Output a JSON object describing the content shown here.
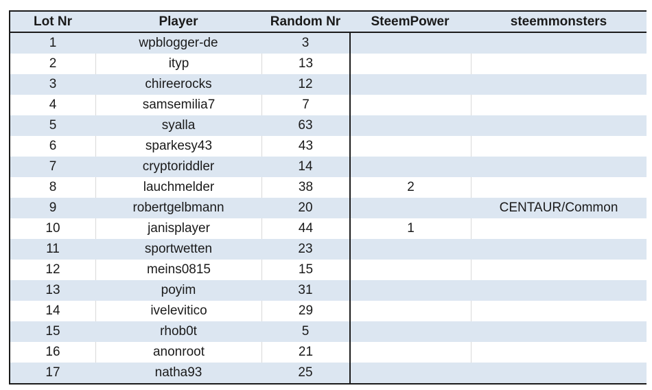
{
  "table": {
    "headers": [
      "Lot Nr",
      "Player",
      "Random Nr",
      "SteemPower",
      "steemmonsters"
    ],
    "rows": [
      [
        "1",
        "wpblogger-de",
        "3",
        "",
        ""
      ],
      [
        "2",
        "ityp",
        "13",
        "",
        ""
      ],
      [
        "3",
        "chireerocks",
        "12",
        "",
        ""
      ],
      [
        "4",
        "samsemilia7",
        "7",
        "",
        ""
      ],
      [
        "5",
        "syalla",
        "63",
        "",
        ""
      ],
      [
        "6",
        "sparkesy43",
        "43",
        "",
        ""
      ],
      [
        "7",
        "cryptoriddler",
        "14",
        "",
        ""
      ],
      [
        "8",
        "lauchmelder",
        "38",
        "2",
        ""
      ],
      [
        "9",
        "robertgelbmann",
        "20",
        "",
        "CENTAUR/Common"
      ],
      [
        "10",
        "janisplayer",
        "44",
        "1",
        ""
      ],
      [
        "11",
        "sportwetten",
        "23",
        "",
        ""
      ],
      [
        "12",
        "meins0815",
        "15",
        "",
        ""
      ],
      [
        "13",
        "poyim",
        "31",
        "",
        ""
      ],
      [
        "14",
        "ivelevitico",
        "29",
        "",
        ""
      ],
      [
        "15",
        "rhob0t",
        "5",
        "",
        ""
      ],
      [
        "16",
        "anonroot",
        "21",
        "",
        ""
      ],
      [
        "17",
        "natha93",
        "25",
        "",
        ""
      ]
    ]
  },
  "colors": {
    "band": "#dce6f1",
    "border": "#1a1a1a",
    "gridline": "#d9d9d9"
  }
}
